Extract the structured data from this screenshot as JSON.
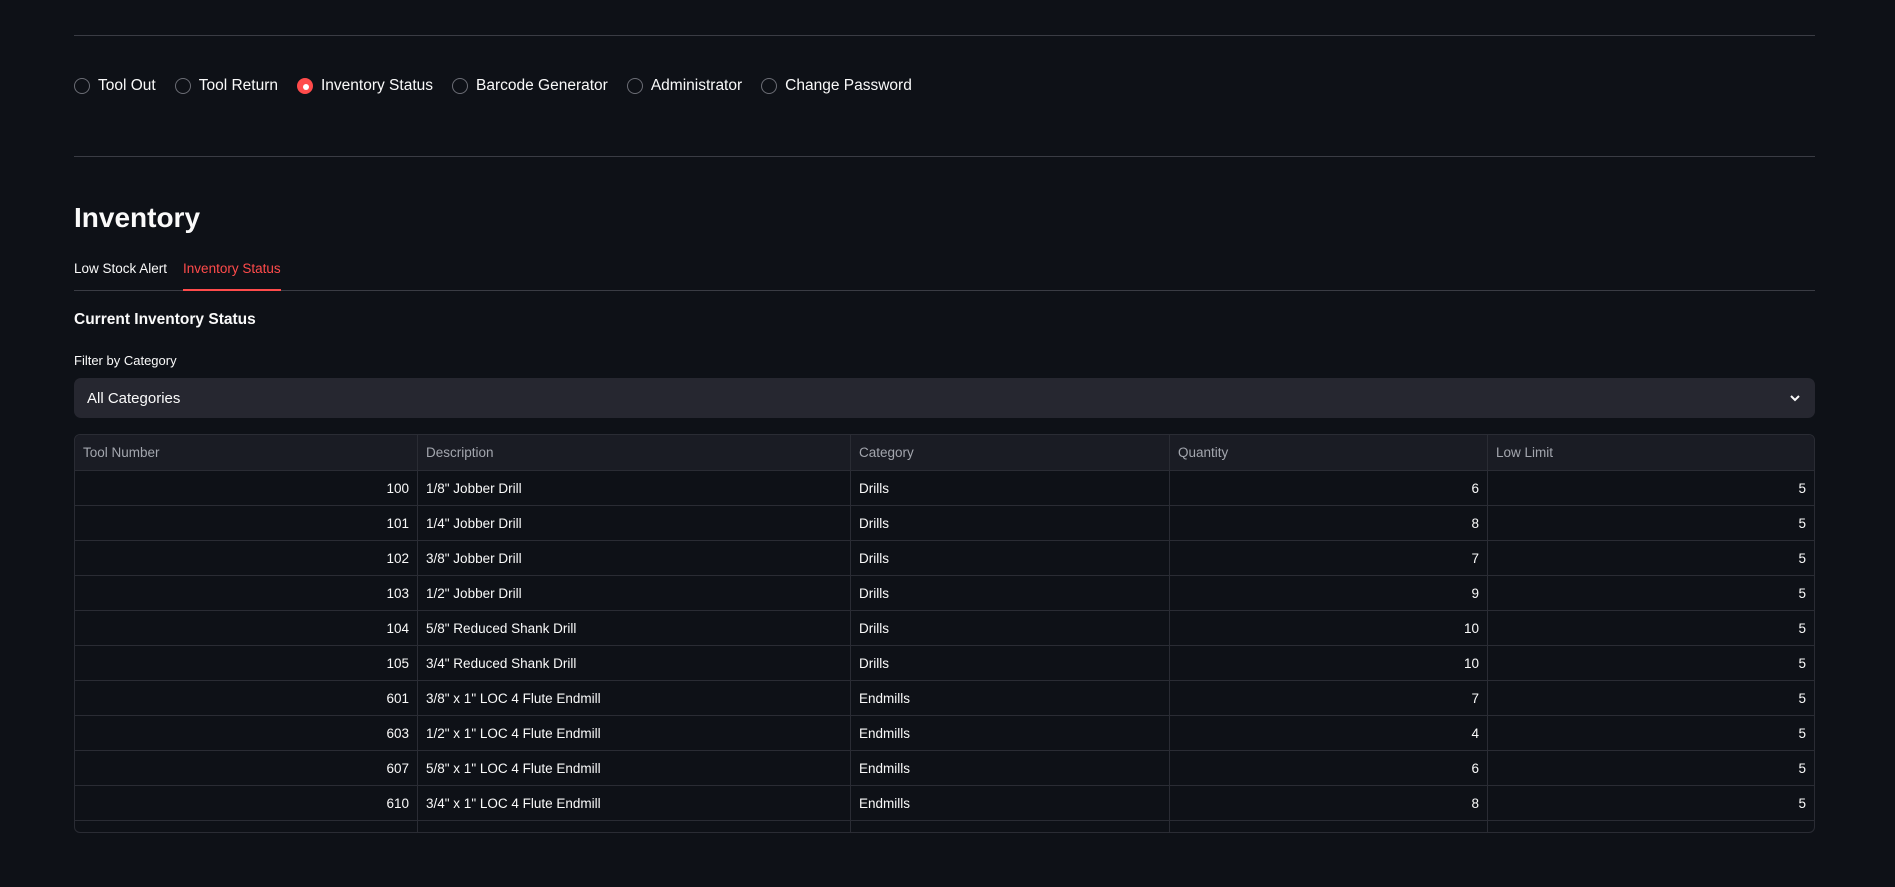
{
  "nav": {
    "options": [
      "Tool Out",
      "Tool Return",
      "Inventory Status",
      "Barcode Generator",
      "Administrator",
      "Change Password"
    ],
    "selected": "Inventory Status"
  },
  "accent": "#ff4b4b",
  "title": "Inventory",
  "tabs": [
    {
      "label": "Low Stock Alert",
      "active": false
    },
    {
      "label": "Inventory Status",
      "active": true
    }
  ],
  "section_title": "Current Inventory Status",
  "filter": {
    "label": "Filter by Category",
    "value": "All Categories",
    "icon": "chevron-down-icon"
  },
  "table": {
    "columns": [
      "Tool Number",
      "Description",
      "Category",
      "Quantity",
      "Low Limit"
    ],
    "rows": [
      [
        "100",
        "1/8\" Jobber Drill",
        "Drills",
        "6",
        "5"
      ],
      [
        "101",
        "1/4\" Jobber Drill",
        "Drills",
        "8",
        "5"
      ],
      [
        "102",
        "3/8\" Jobber Drill",
        "Drills",
        "7",
        "5"
      ],
      [
        "103",
        "1/2\" Jobber Drill",
        "Drills",
        "9",
        "5"
      ],
      [
        "104",
        "5/8\" Reduced Shank Drill",
        "Drills",
        "10",
        "5"
      ],
      [
        "105",
        "3/4\" Reduced Shank Drill",
        "Drills",
        "10",
        "5"
      ],
      [
        "601",
        "3/8\" x 1\" LOC 4 Flute Endmill",
        "Endmills",
        "7",
        "5"
      ],
      [
        "603",
        "1/2\" x 1\" LOC 4 Flute Endmill",
        "Endmills",
        "4",
        "5"
      ],
      [
        "607",
        "5/8\" x 1\" LOC 4 Flute Endmill",
        "Endmills",
        "6",
        "5"
      ],
      [
        "610",
        "3/4\" x 1\" LOC 4 Flute Endmill",
        "Endmills",
        "8",
        "5"
      ]
    ]
  }
}
